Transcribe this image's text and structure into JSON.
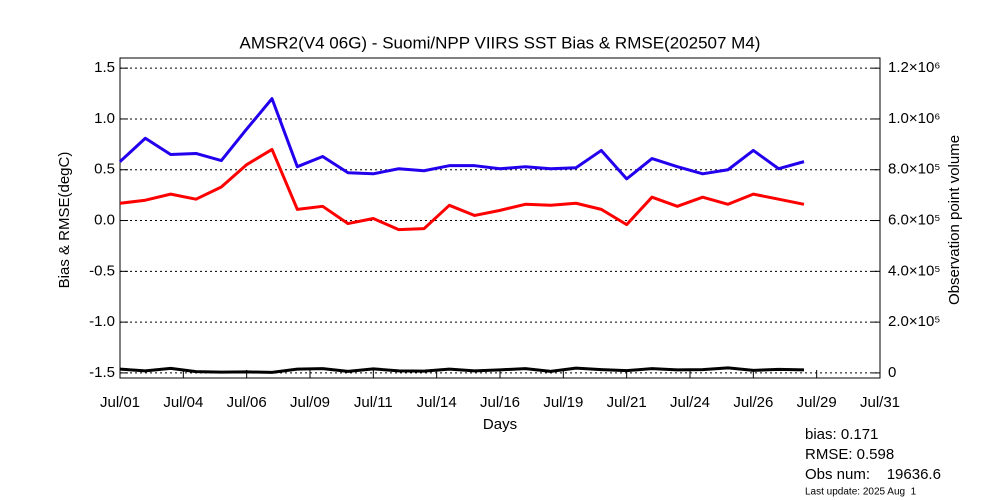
{
  "chart_data": {
    "type": "line",
    "title": "AMSR2(V4 06G) - Suomi/NPP VIIRS SST Bias & RMSE(202507 M4)",
    "x_label": "Days",
    "y_label": "Bias & RMSE(degC)",
    "y2_label": "Observation point volume",
    "x": [
      1,
      2,
      3,
      4,
      5,
      6,
      7,
      8,
      9,
      10,
      11,
      12,
      13,
      14,
      15,
      16,
      17,
      18,
      19,
      20,
      21,
      22,
      23,
      24,
      25,
      26,
      27,
      28
    ],
    "xlim": [
      1,
      31
    ],
    "xticks": [
      {
        "value": 1,
        "label": "Jul/01"
      },
      {
        "value": 3.5,
        "label": "Jul/04"
      },
      {
        "value": 6,
        "label": "Jul/06"
      },
      {
        "value": 8.5,
        "label": "Jul/09"
      },
      {
        "value": 11,
        "label": "Jul/11"
      },
      {
        "value": 13.5,
        "label": "Jul/14"
      },
      {
        "value": 16,
        "label": "Jul/16"
      },
      {
        "value": 18.5,
        "label": "Jul/19"
      },
      {
        "value": 21,
        "label": "Jul/21"
      },
      {
        "value": 23.5,
        "label": "Jul/24"
      },
      {
        "value": 26,
        "label": "Jul/26"
      },
      {
        "value": 28.5,
        "label": "Jul/29"
      },
      {
        "value": 31,
        "label": "Jul/31"
      }
    ],
    "ylim": [
      -1.55,
      1.6
    ],
    "yticks": [
      1.5,
      {
        "value": 1,
        "label": "1.0"
      },
      0.5,
      {
        "value": 0,
        "label": "0.0"
      },
      -0.5,
      {
        "value": -1,
        "label": "-1.0"
      },
      -1.5
    ],
    "y2lim": [
      -20000,
      1240000
    ],
    "y2ticks": [
      0,
      {
        "value": 200000,
        "label": "2.0×10⁵"
      },
      {
        "value": 400000,
        "label": "4.0×10⁵"
      },
      {
        "value": 600000,
        "label": "6.0×10⁵"
      },
      {
        "value": 800000,
        "label": "8.0×10⁵"
      },
      {
        "value": 1000000,
        "label": "1.0×10⁶"
      },
      {
        "value": 1200000,
        "label": "1.2×10⁶"
      }
    ],
    "grid": true,
    "series": [
      {
        "color": "#ff0000",
        "values": [
          0.17,
          0.2,
          0.26,
          0.21,
          0.33,
          0.55,
          0.7,
          0.11,
          0.14,
          -0.03,
          0.02,
          -0.09,
          -0.08,
          0.15,
          0.05,
          0.1,
          0.16,
          0.15,
          0.17,
          0.11,
          -0.04,
          0.23,
          0.14,
          0.23,
          0.16,
          0.26,
          0.21,
          0.16
        ]
      },
      {
        "color": "#2200ee",
        "values": [
          0.58,
          0.81,
          0.65,
          0.66,
          0.59,
          0.9,
          1.2,
          0.53,
          0.63,
          0.47,
          0.46,
          0.51,
          0.49,
          0.54,
          0.54,
          0.51,
          0.53,
          0.51,
          0.52,
          0.69,
          0.41,
          0.61,
          0.53,
          0.46,
          0.5,
          0.69,
          0.51,
          0.58
        ]
      },
      {
        "color": "#000000",
        "axis": "y2",
        "values": [
          15000,
          8000,
          18000,
          5000,
          3000,
          4000,
          2000,
          15000,
          17000,
          6000,
          16000,
          8000,
          7000,
          15000,
          8000,
          12000,
          17000,
          6000,
          19000,
          13000,
          9000,
          17000,
          12000,
          13000,
          20000,
          10000,
          14000,
          12000
        ]
      }
    ],
    "annotations": [
      {
        "text": "bias: 0.171",
        "color": "#ff0000"
      },
      {
        "text": "RMSE: 0.598",
        "color": "#2200ee"
      },
      {
        "text": "Obs num:    19636.6",
        "color": "#000000"
      },
      {
        "text": "Last update: 2025 Aug  1",
        "color": "#000000"
      }
    ]
  }
}
